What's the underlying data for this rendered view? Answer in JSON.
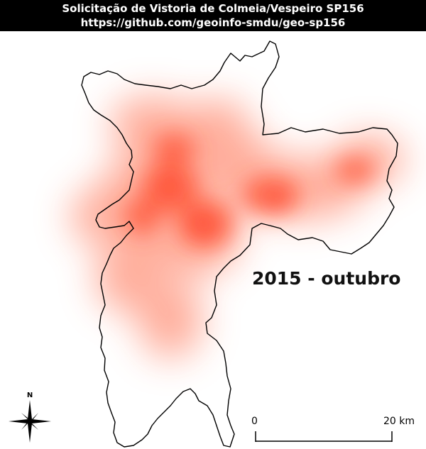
{
  "header": {
    "title_line1": "Solicitação de Vistoria de Colmeia/Vespeiro SP156",
    "title_line2": "https://github.com/geoinfo-smdu/geo-sp156"
  },
  "map": {
    "period_label": "2015 - outubro",
    "heat_color": "#ff4a2a",
    "boundary_color": "#000000"
  },
  "north_arrow": {
    "label": "N",
    "icon": "compass-rose-icon"
  },
  "scale_bar": {
    "start_label": "0",
    "end_label": "20 km"
  }
}
